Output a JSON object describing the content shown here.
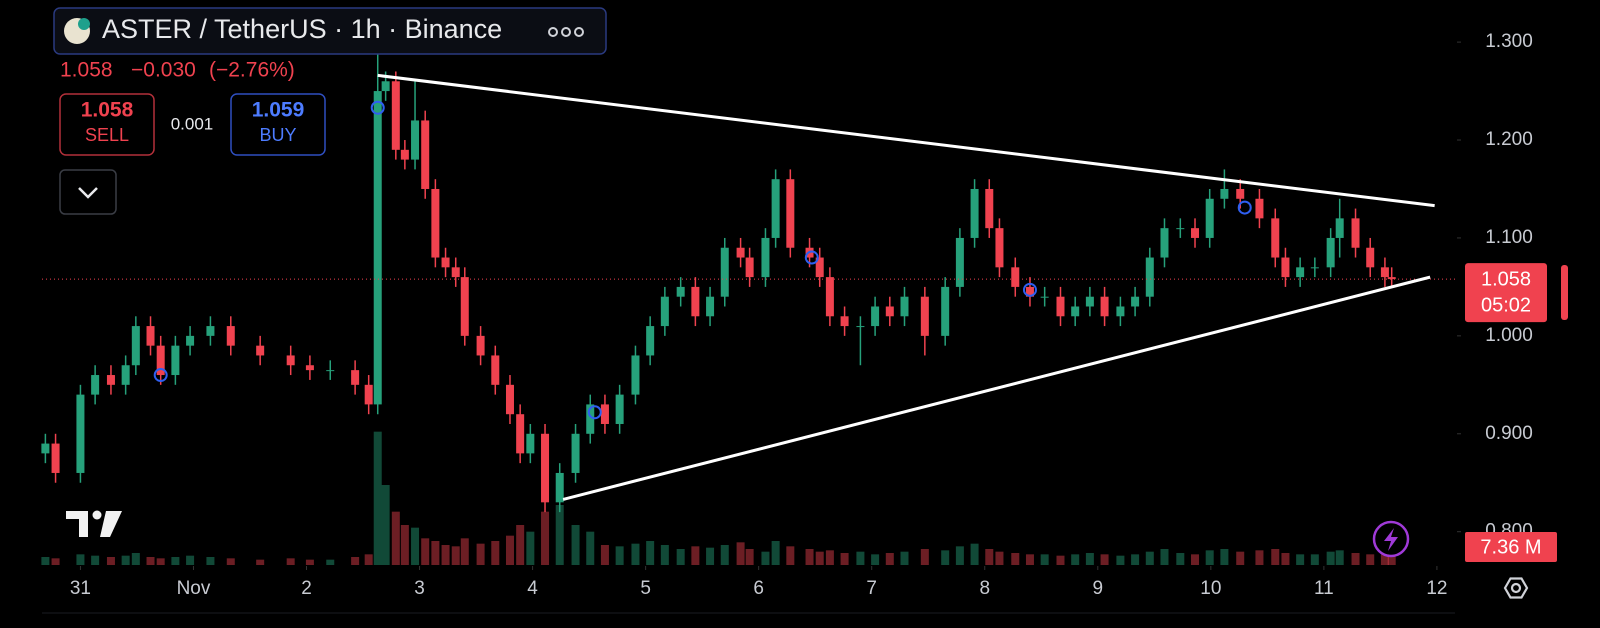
{
  "header": {
    "symbol": "ASTER / TetherUS · 1h · Binance",
    "last": "1.058",
    "change": "−0.030",
    "change_pct": "(−2.76%)"
  },
  "trade": {
    "sell_price": "1.058",
    "sell_label": "SELL",
    "spread": "0.001",
    "buy_price": "1.059",
    "buy_label": "BUY"
  },
  "price_tag": {
    "price": "1.058",
    "countdown": "05:02"
  },
  "volume_tag": "7.36 M",
  "chart_data": {
    "type": "candlestick",
    "x": [
      -0.31,
      -0.22,
      0,
      0.13,
      0.27,
      0.4,
      0.49,
      0.62,
      0.71,
      0.84,
      0.97,
      1.15,
      1.33,
      1.59,
      1.86,
      2.03,
      2.21,
      2.43,
      2.55,
      2.63,
      2.7,
      2.79,
      2.87,
      2.96,
      3.05,
      3.14,
      3.23,
      3.32,
      3.4,
      3.54,
      3.67,
      3.8,
      3.89,
      3.98,
      4.11,
      4.24,
      4.38,
      4.51,
      4.64,
      4.77,
      4.91,
      5.04,
      5.17,
      5.31,
      5.44,
      5.57,
      5.7,
      5.84,
      5.92,
      6.06,
      6.15,
      6.28,
      6.45,
      6.54,
      6.63,
      6.76,
      6.9,
      7.03,
      7.16,
      7.29,
      7.47,
      7.65,
      7.78,
      7.91,
      8.04,
      8.13,
      8.27,
      8.4,
      8.53,
      8.67,
      8.8,
      8.93,
      9.06,
      9.2,
      9.33,
      9.46,
      9.59,
      9.73,
      9.86,
      9.99,
      10.12,
      10.26,
      10.43,
      10.57,
      10.66,
      10.79,
      10.92,
      11.06,
      11.14,
      11.28,
      11.41,
      11.54,
      11.6
    ],
    "open": [
      0.88,
      0.89,
      0.86,
      0.94,
      0.96,
      0.95,
      0.97,
      1.01,
      0.99,
      0.96,
      0.99,
      1.0,
      1.01,
      0.99,
      0.98,
      0.97,
      0.965,
      0.965,
      0.95,
      0.93,
      1.25,
      1.26,
      1.19,
      1.18,
      1.22,
      1.15,
      1.08,
      1.07,
      1.06,
      1.0,
      0.98,
      0.95,
      0.92,
      0.88,
      0.9,
      0.83,
      0.86,
      0.9,
      0.93,
      0.91,
      0.94,
      0.98,
      1.01,
      1.04,
      1.05,
      1.02,
      1.04,
      1.09,
      1.08,
      1.06,
      1.1,
      1.16,
      1.09,
      1.08,
      1.06,
      1.02,
      1.01,
      1.01,
      1.03,
      1.02,
      1.04,
      1.0,
      1.05,
      1.1,
      1.15,
      1.11,
      1.07,
      1.05,
      1.04,
      1.04,
      1.02,
      1.03,
      1.04,
      1.02,
      1.03,
      1.04,
      1.08,
      1.11,
      1.11,
      1.1,
      1.14,
      1.15,
      1.14,
      1.12,
      1.08,
      1.06,
      1.07,
      1.07,
      1.1,
      1.12,
      1.09,
      1.07,
      1.06
    ],
    "high": [
      0.9,
      0.9,
      0.95,
      0.97,
      0.97,
      0.98,
      1.02,
      1.02,
      1.0,
      1.0,
      1.01,
      1.02,
      1.02,
      1.0,
      0.99,
      0.98,
      0.975,
      0.975,
      0.96,
      1.29,
      1.27,
      1.27,
      1.2,
      1.26,
      1.23,
      1.16,
      1.09,
      1.08,
      1.07,
      1.01,
      0.99,
      0.96,
      0.93,
      0.91,
      0.91,
      0.87,
      0.91,
      0.94,
      0.94,
      0.95,
      0.99,
      1.02,
      1.05,
      1.06,
      1.06,
      1.05,
      1.1,
      1.1,
      1.09,
      1.11,
      1.17,
      1.17,
      1.1,
      1.09,
      1.07,
      1.03,
      1.02,
      1.04,
      1.04,
      1.05,
      1.05,
      1.06,
      1.11,
      1.16,
      1.16,
      1.12,
      1.08,
      1.06,
      1.05,
      1.05,
      1.04,
      1.05,
      1.05,
      1.04,
      1.05,
      1.09,
      1.12,
      1.12,
      1.12,
      1.15,
      1.17,
      1.16,
      1.15,
      1.13,
      1.09,
      1.08,
      1.08,
      1.11,
      1.14,
      1.13,
      1.1,
      1.08,
      1.07
    ],
    "low": [
      0.87,
      0.85,
      0.85,
      0.93,
      0.94,
      0.94,
      0.96,
      0.98,
      0.95,
      0.95,
      0.98,
      0.99,
      0.98,
      0.97,
      0.96,
      0.955,
      0.955,
      0.94,
      0.92,
      0.92,
      1.24,
      1.18,
      1.17,
      1.17,
      1.14,
      1.07,
      1.06,
      1.05,
      0.99,
      0.97,
      0.94,
      0.91,
      0.87,
      0.87,
      0.82,
      0.82,
      0.85,
      0.89,
      0.9,
      0.9,
      0.93,
      0.97,
      1.0,
      1.03,
      1.01,
      1.01,
      1.03,
      1.07,
      1.05,
      1.05,
      1.09,
      1.08,
      1.07,
      1.05,
      1.01,
      1.0,
      0.97,
      1.0,
      1.01,
      1.01,
      0.98,
      0.99,
      1.04,
      1.09,
      1.1,
      1.06,
      1.04,
      1.03,
      1.03,
      1.01,
      1.01,
      1.02,
      1.01,
      1.01,
      1.02,
      1.03,
      1.07,
      1.1,
      1.09,
      1.09,
      1.13,
      1.13,
      1.11,
      1.07,
      1.05,
      1.05,
      1.06,
      1.06,
      1.08,
      1.08,
      1.06,
      1.05,
      1.05
    ],
    "close": [
      0.89,
      0.86,
      0.94,
      0.96,
      0.95,
      0.97,
      1.01,
      0.99,
      0.96,
      0.99,
      1.0,
      1.01,
      0.99,
      0.98,
      0.97,
      0.965,
      0.965,
      0.95,
      0.93,
      1.25,
      1.26,
      1.19,
      1.18,
      1.22,
      1.15,
      1.08,
      1.07,
      1.06,
      1.0,
      0.98,
      0.95,
      0.92,
      0.88,
      0.9,
      0.83,
      0.86,
      0.9,
      0.93,
      0.91,
      0.94,
      0.98,
      1.01,
      1.04,
      1.05,
      1.02,
      1.04,
      1.09,
      1.08,
      1.06,
      1.1,
      1.16,
      1.09,
      1.08,
      1.06,
      1.02,
      1.01,
      1.01,
      1.03,
      1.02,
      1.04,
      1.0,
      1.05,
      1.1,
      1.15,
      1.11,
      1.07,
      1.05,
      1.04,
      1.04,
      1.02,
      1.03,
      1.04,
      1.02,
      1.03,
      1.04,
      1.08,
      1.11,
      1.11,
      1.1,
      1.14,
      1.15,
      1.14,
      1.12,
      1.08,
      1.06,
      1.07,
      1.07,
      1.1,
      1.12,
      1.09,
      1.07,
      1.06,
      1.058
    ],
    "volume": [
      6,
      5,
      8,
      7,
      6,
      7,
      9,
      6,
      5,
      6,
      7,
      6,
      5,
      4,
      5,
      4,
      4,
      6,
      8,
      100,
      60,
      40,
      30,
      28,
      20,
      18,
      15,
      14,
      20,
      16,
      18,
      22,
      30,
      25,
      40,
      45,
      30,
      25,
      15,
      14,
      16,
      18,
      15,
      12,
      14,
      13,
      15,
      17,
      12,
      10,
      18,
      14,
      12,
      10,
      11,
      9,
      10,
      8,
      9,
      10,
      12,
      11,
      14,
      16,
      12,
      10,
      9,
      8,
      8,
      7,
      8,
      9,
      8,
      7,
      8,
      10,
      12,
      9,
      8,
      11,
      12,
      10,
      11,
      12,
      9,
      8,
      8,
      10,
      11,
      9,
      8,
      8,
      7.36
    ],
    "volume_lim": [
      0,
      150
    ],
    "xlim": [
      -0.34,
      12.16
    ],
    "xticks": [
      {
        "value": 0,
        "label": "31"
      },
      {
        "value": 1,
        "label": "Nov"
      },
      2,
      3,
      4,
      5,
      6,
      7,
      8,
      9,
      10,
      11,
      12
    ],
    "ylim": [
      0.766,
      1.343
    ],
    "yticks": [
      {
        "value": 0.8,
        "label": "0.800"
      },
      {
        "value": 0.9,
        "label": "0.900"
      },
      {
        "value": 1.0,
        "label": "1.000"
      },
      {
        "value": 1.1,
        "label": "1.100"
      },
      {
        "value": 1.2,
        "label": "1.200"
      },
      {
        "value": 1.3,
        "label": "1.300"
      }
    ],
    "grid": false,
    "last_price": 1.058,
    "trendlines": [
      {
        "x": [
          2.63,
          11.98
        ],
        "y": [
          1.266,
          1.133
        ]
      },
      {
        "x": [
          4.27,
          11.94
        ],
        "y": [
          0.833,
          1.06
        ]
      }
    ],
    "markers": {
      "x": [
        0.71,
        2.63,
        4.55,
        6.47,
        8.4,
        10.3
      ],
      "y": [
        0.96,
        1.233,
        0.922,
        1.08,
        1.047,
        1.131
      ]
    },
    "up_color": "#26a17b",
    "down_color": "#f0424f",
    "marker_color": "#2f5ff0",
    "trendline_color": "#ffffff"
  }
}
